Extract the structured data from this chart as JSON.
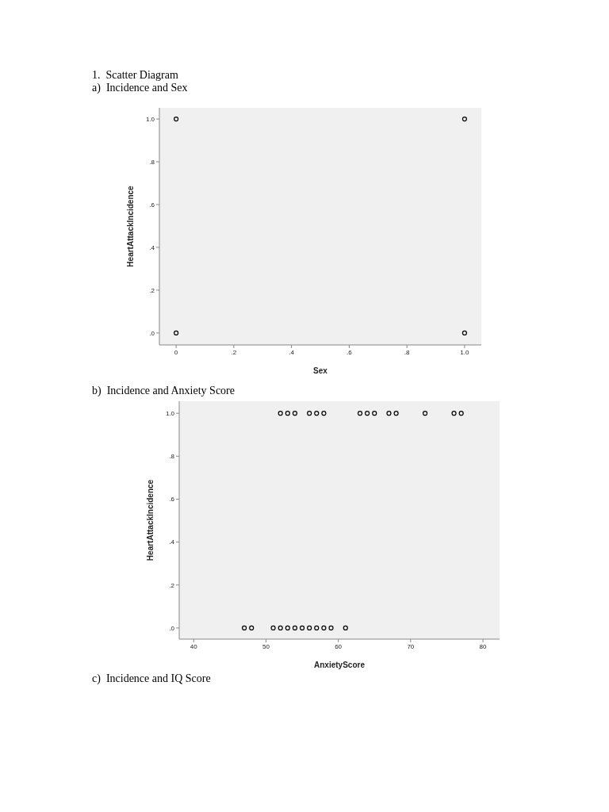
{
  "chart_data": [
    {
      "type": "scatter",
      "title": "1. Scatter Diagram",
      "subtitle": "a) Incidence and Sex",
      "xlabel": "Sex",
      "ylabel": "HeartAttackIncidence",
      "marker": "circle",
      "series": [
        {
          "color": "#000000",
          "x": [
            0,
            1,
            0,
            1
          ],
          "values": [
            1,
            1,
            0,
            0
          ]
        }
      ],
      "xlim": [
        -0.058,
        1.058
      ],
      "xticks": [
        0,
        {
          "value": 0.2,
          "label": ".2"
        },
        {
          "value": 0.4,
          "label": ".4"
        },
        {
          "value": 0.6,
          "label": ".6"
        },
        {
          "value": 0.8,
          "label": ".8"
        },
        {
          "value": 1,
          "label": "1.0"
        }
      ],
      "ylim": [
        -0.056,
        1.052
      ],
      "yticks": [
        {
          "value": 0,
          "label": ".0"
        },
        {
          "value": 0.2,
          "label": ".2"
        },
        {
          "value": 0.4,
          "label": ".4"
        },
        {
          "value": 0.6,
          "label": ".6"
        },
        {
          "value": 0.8,
          "label": ".8"
        },
        {
          "value": 1,
          "label": "1.0"
        }
      ]
    },
    {
      "type": "scatter",
      "title": "b) Incidence and Anxiety Score",
      "xlabel": "AnxietyScore",
      "ylabel": "HeartAttackIncidence",
      "marker": "circle",
      "annotations": [
        "c) Incidence and IQ Score"
      ],
      "series": [
        {
          "color": "#000000",
          "x": [
            52,
            53,
            54,
            56,
            57,
            58,
            63,
            64,
            65,
            67,
            68,
            72,
            76,
            77,
            47,
            48,
            51,
            52,
            53,
            54,
            55,
            56,
            57,
            58,
            59,
            61
          ],
          "values": [
            1,
            1,
            1,
            1,
            1,
            1,
            1,
            1,
            1,
            1,
            1,
            1,
            1,
            1,
            0,
            0,
            0,
            0,
            0,
            0,
            0,
            0,
            0,
            0,
            0,
            0
          ]
        }
      ],
      "xlim": [
        38,
        82.3
      ],
      "xticks": [
        40,
        50,
        60,
        70,
        80
      ],
      "ylim": [
        -0.052,
        1.056
      ],
      "yticks": [
        {
          "value": 0,
          "label": ".0"
        },
        {
          "value": 0.2,
          "label": ".2"
        },
        {
          "value": 0.4,
          "label": ".4"
        },
        {
          "value": 0.6,
          "label": ".6"
        },
        {
          "value": 0.8,
          "label": ".8"
        },
        {
          "value": 1,
          "label": "1.0"
        }
      ]
    }
  ]
}
